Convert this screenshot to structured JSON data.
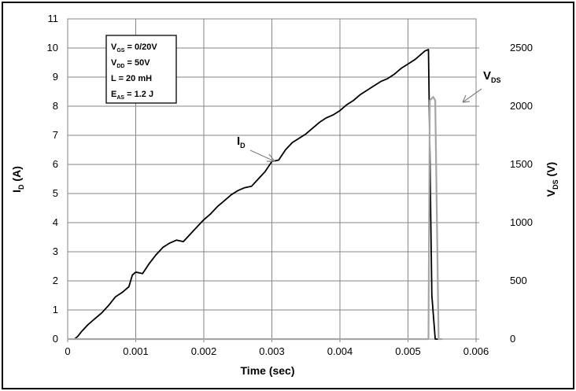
{
  "chart_data": {
    "type": "line",
    "xlabel": "Time (sec)",
    "ylabel_left": {
      "main": "I",
      "sub": "D",
      "suffix": " (A)"
    },
    "ylabel_right": {
      "main": "V",
      "sub": "DS",
      "suffix": " (V)"
    },
    "xlim": [
      0,
      0.006
    ],
    "ylim_left": [
      0,
      11
    ],
    "ylim_right": [
      0,
      2750
    ],
    "x_ticks": [
      "0",
      "0.001",
      "0.002",
      "0.003",
      "0.004",
      "0.005",
      "0.006"
    ],
    "y_left_ticks": [
      "0",
      "1",
      "2",
      "3",
      "4",
      "5",
      "6",
      "7",
      "8",
      "9",
      "10",
      "11"
    ],
    "y_right_ticks": [
      "0",
      "500",
      "1000",
      "1500",
      "2000",
      "2500"
    ],
    "grid": true,
    "legend": "none",
    "condition_box": [
      {
        "main": "V",
        "sub": "GS",
        "rest": " = 0/20V"
      },
      {
        "main": "V",
        "sub": "DD",
        "rest": " = 50V"
      },
      {
        "main": "L = 20 mH",
        "sub": "",
        "rest": ""
      },
      {
        "main": "E",
        "sub": "AS",
        "rest": " = 1.2 J"
      }
    ],
    "annotations": [
      {
        "series": "I_D",
        "main": "I",
        "sub": "D",
        "points_to": [
          0.00295,
          6.1
        ]
      },
      {
        "series": "V_DS",
        "main": "V",
        "sub": "DS",
        "points_to": [
          0.0054,
          2070
        ]
      }
    ],
    "series": [
      {
        "id": "I_D",
        "axis": "left",
        "color": "#000000",
        "x": [
          0.0001,
          0.00015,
          0.0002,
          0.0003,
          0.0004,
          0.0005,
          0.0006,
          0.0007,
          0.0008,
          0.0009,
          0.00095,
          0.001,
          0.0011,
          0.0012,
          0.0013,
          0.0014,
          0.0015,
          0.0016,
          0.0017,
          0.0018,
          0.0019,
          0.002,
          0.0021,
          0.0022,
          0.0023,
          0.0024,
          0.0025,
          0.0026,
          0.0027,
          0.0028,
          0.0029,
          0.003,
          0.0031,
          0.0032,
          0.0033,
          0.0034,
          0.0035,
          0.0036,
          0.0037,
          0.0038,
          0.0039,
          0.004,
          0.0041,
          0.0042,
          0.0043,
          0.0044,
          0.0045,
          0.0046,
          0.0047,
          0.0048,
          0.0049,
          0.005,
          0.0051,
          0.0052,
          0.00525,
          0.0053,
          0.00535,
          0.0054,
          0.00545,
          0.0055
        ],
        "y": [
          0.0,
          0.1,
          0.25,
          0.5,
          0.7,
          0.9,
          1.15,
          1.45,
          1.6,
          1.8,
          2.2,
          2.3,
          2.25,
          2.6,
          2.9,
          3.15,
          3.3,
          3.4,
          3.35,
          3.6,
          3.85,
          4.1,
          4.3,
          4.55,
          4.75,
          4.95,
          5.1,
          5.2,
          5.25,
          5.5,
          5.75,
          6.1,
          6.15,
          6.5,
          6.75,
          6.9,
          7.05,
          7.25,
          7.45,
          7.6,
          7.7,
          7.85,
          8.05,
          8.2,
          8.4,
          8.55,
          8.7,
          8.85,
          8.95,
          9.1,
          9.3,
          9.45,
          9.6,
          9.8,
          9.9,
          9.95,
          1.5,
          0.0,
          0.0,
          0.0
        ]
      },
      {
        "id": "V_DS",
        "axis": "right",
        "color": "#a6a6a6",
        "x": [
          0.0,
          0.0051,
          0.00528,
          0.0053,
          0.00532,
          0.00537,
          0.0054,
          0.00545,
          0.0055
        ],
        "y": [
          0,
          0,
          0,
          0,
          2050,
          2080,
          2050,
          0,
          0
        ]
      }
    ]
  }
}
